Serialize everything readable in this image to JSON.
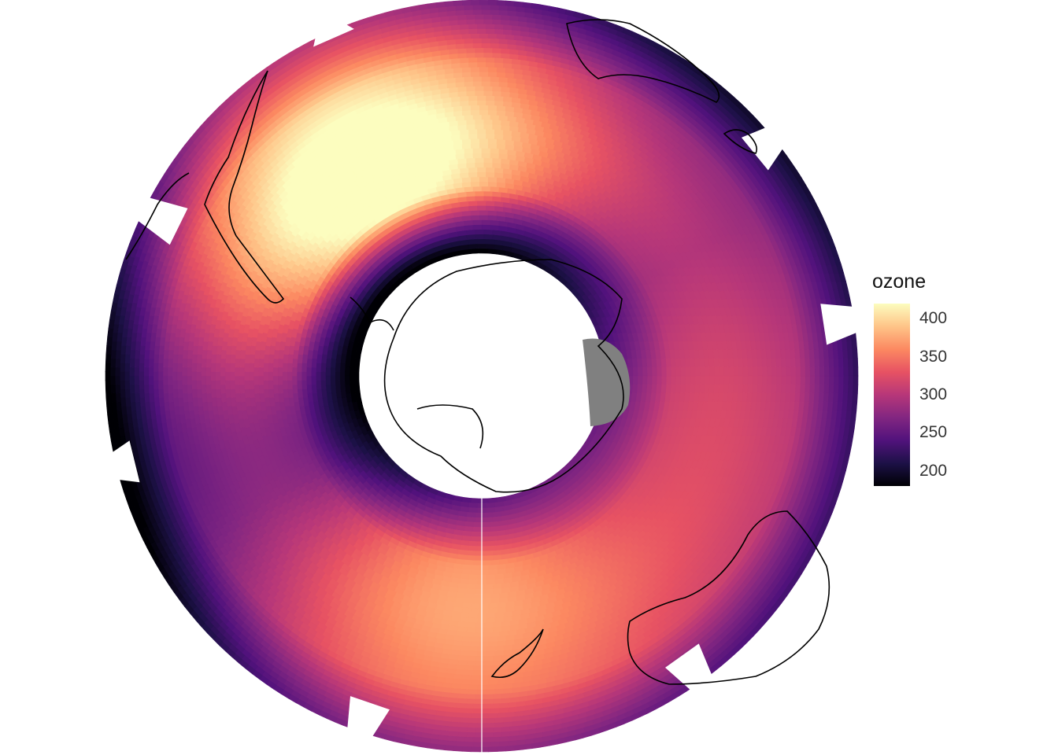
{
  "legend": {
    "title": "ozone",
    "colors": [
      "#000004",
      "#1d1147",
      "#51127c",
      "#822681",
      "#b73779",
      "#e75263",
      "#fc8961",
      "#fec488",
      "#fcfdbf"
    ],
    "min": 180,
    "max": 420,
    "ticks": [
      {
        "value": 400,
        "label": "400"
      },
      {
        "value": 350,
        "label": "350"
      },
      {
        "value": 300,
        "label": "300"
      },
      {
        "value": 250,
        "label": "250"
      },
      {
        "value": 200,
        "label": "200"
      }
    ]
  },
  "map": {
    "projection": "south polar stereographic",
    "variable": "ozone",
    "missing_color": "#808080",
    "coastline_color": "#000000"
  }
}
